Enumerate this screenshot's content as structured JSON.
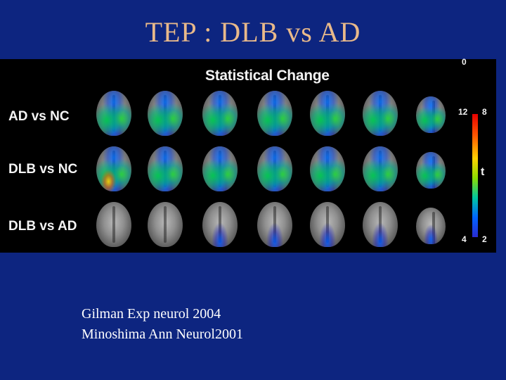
{
  "slide": {
    "title": "TEP : DLB vs AD"
  },
  "figure": {
    "heading": "Statistical Change",
    "rows": [
      {
        "label": "AD vs NC",
        "activation": "strong"
      },
      {
        "label": "DLB vs NC",
        "activation": "strong"
      },
      {
        "label": "DLB vs AD",
        "activation": "weak"
      }
    ],
    "slices_per_row": 7,
    "scale": {
      "left_top": "12",
      "left_bottom": "4",
      "right_top_cut": "0",
      "right_top": "8",
      "right_bottom": "2",
      "label": "t",
      "colors": [
        "#e60000",
        "#ff5a00",
        "#ffd200",
        "#8cdc00",
        "#00c8a0",
        "#0064ff",
        "#2a2ad0"
      ]
    }
  },
  "references": {
    "line1": "Gilman Exp neurol 2004",
    "line2": "Minoshima Ann Neurol2001"
  }
}
